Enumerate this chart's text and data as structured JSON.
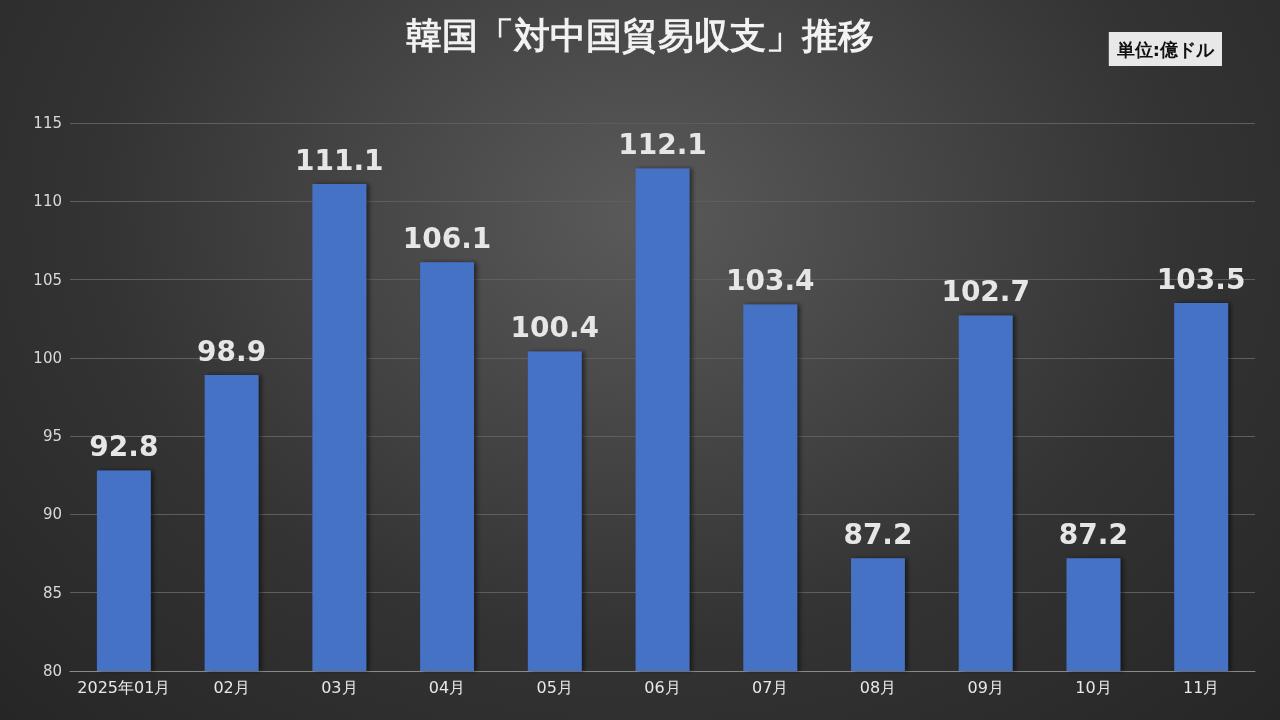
{
  "chart_data": {
    "type": "bar",
    "title": "韓国「対中国貿易収支」推移",
    "categories": [
      "2025年01月",
      "02月",
      "03月",
      "04月",
      "05月",
      "06月",
      "07月",
      "08月",
      "09月",
      "10月",
      "11月"
    ],
    "values": [
      92.8,
      98.9,
      111.1,
      106.1,
      100.4,
      112.1,
      103.4,
      87.2,
      102.7,
      87.2,
      103.5
    ],
    "color": "#4472c4",
    "ylim": [
      80,
      115
    ],
    "yticks": [
      80,
      85,
      90,
      95,
      100,
      105,
      110,
      115
    ],
    "grid": "y",
    "data_labels": true,
    "annotations": [
      "単位:億ドル"
    ]
  }
}
